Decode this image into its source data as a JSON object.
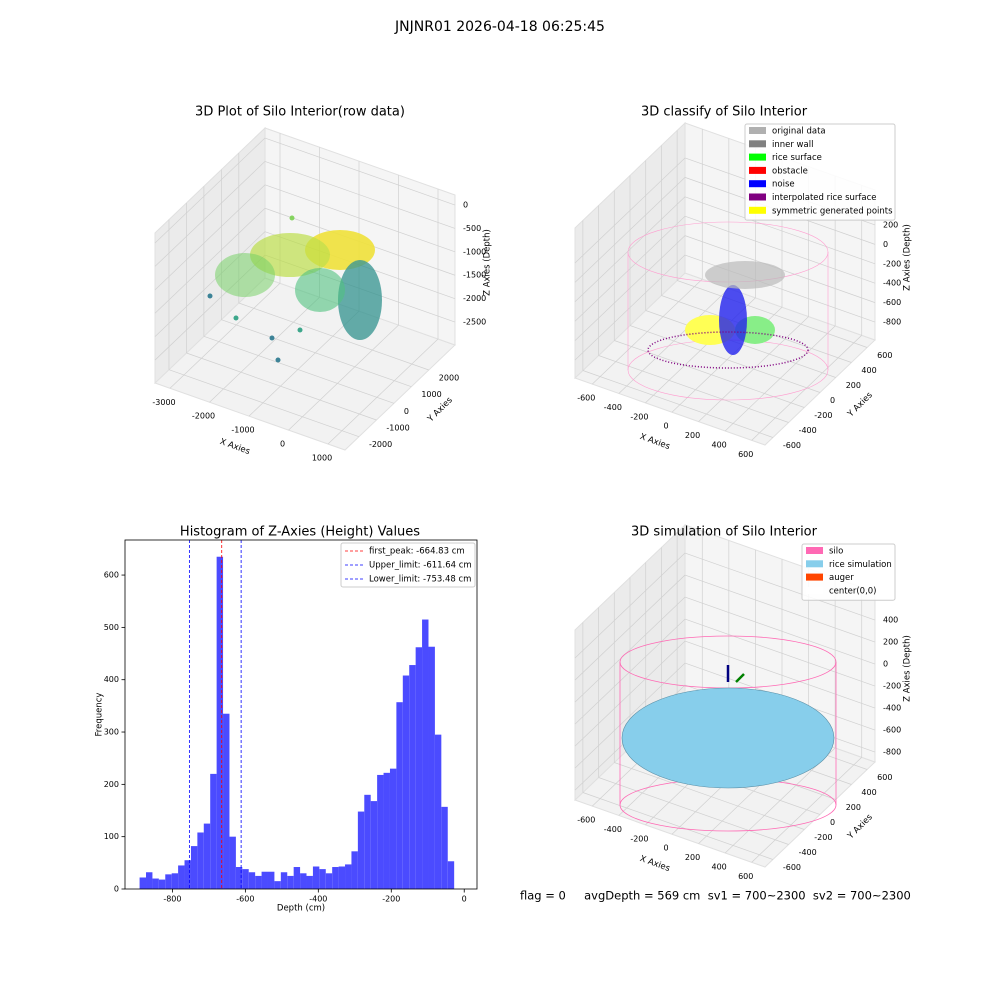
{
  "title": "JNJNR01 2026-04-18 06:25:45",
  "chart_data": [
    {
      "type": "scatter3d",
      "title": "3D Plot of Silo Interior(row data)",
      "xlabel": "X Axies",
      "ylabel": "Y Axies",
      "zlabel": "Z Axies (Depth)",
      "xlim": [
        -3380,
        1430
      ],
      "ylim": [
        -2800,
        3500
      ],
      "zlim": [
        -2990,
        214
      ],
      "xticks": [
        -3000,
        -2000,
        -1000,
        0,
        1000
      ],
      "yticks": [
        -2000,
        -1000,
        0,
        1000,
        2000
      ],
      "zticks": [
        0,
        -500,
        -1000,
        -1500,
        -2000,
        -2500
      ]
    },
    {
      "type": "scatter3d",
      "title": "3D classify of Silo Interior",
      "xlabel": "X Axies",
      "ylabel": "Y Axies",
      "zlabel": "Z Axies (Depth)",
      "xlim": [
        -730,
        700
      ],
      "ylim": [
        -700,
        700
      ],
      "zlim": [
        -985,
        560
      ],
      "xticks": [
        -600,
        -400,
        -200,
        0,
        200,
        400,
        600
      ],
      "yticks": [
        -600,
        -400,
        -200,
        0,
        200,
        400,
        600
      ],
      "zticks": [
        200,
        0,
        -200,
        -400,
        -600,
        -800
      ],
      "legend": [
        {
          "name": "original data",
          "color": "#b0b0b0"
        },
        {
          "name": "inner wall",
          "color": "#808080"
        },
        {
          "name": "rice surface",
          "color": "#00ff00"
        },
        {
          "name": "obstacle",
          "color": "#ff0000"
        },
        {
          "name": "noise",
          "color": "#0000ff"
        },
        {
          "name": "interpolated rice surface",
          "color": "#800080"
        },
        {
          "name": "symmetric generated points",
          "color": "#ffff00"
        }
      ]
    },
    {
      "type": "histogram",
      "title": "Histogram of Z-Axies (Height) Values",
      "xlabel": "Depth (cm)",
      "ylabel": "Frequency",
      "color": "#4b4bff",
      "bins": [
        -890,
        -872.4,
        -854.8,
        -837.2,
        -819.6,
        -802,
        -784.4,
        -766.8,
        -749.2,
        -731.6,
        -714,
        -696.4,
        -678.8,
        -661.2,
        -643.6,
        -626,
        -608.4,
        -590.8,
        -573.2,
        -555.6,
        -538,
        -520.4,
        -502.8,
        -485.2,
        -467.6,
        -450,
        -432.4,
        -414.8,
        -397.2,
        -379.6,
        -362,
        -344.4,
        -326.8,
        -309.2,
        -291.6,
        -274,
        -256.4,
        -238.8,
        -221.2,
        -203.6,
        -186,
        -168.4,
        -150.8,
        -133.2,
        -115.6,
        -98,
        -80.4,
        -62.8,
        -45.2,
        -27.6,
        -10
      ],
      "values": [
        22,
        32,
        20,
        18,
        28,
        30,
        45,
        55,
        82,
        108,
        125,
        220,
        635,
        335,
        100,
        42,
        38,
        32,
        25,
        33,
        33,
        15,
        32,
        25,
        42,
        30,
        25,
        43,
        38,
        30,
        42,
        43,
        47,
        72,
        148,
        180,
        168,
        218,
        222,
        230,
        357,
        408,
        428,
        462,
        515,
        463,
        295,
        157,
        53,
        0
      ],
      "xlim": [
        -930,
        35
      ],
      "ylim": [
        0,
        667
      ],
      "xticks": [
        -800,
        -600,
        -400,
        -200,
        0
      ],
      "yticks": [
        0,
        100,
        200,
        300,
        400,
        500,
        600
      ],
      "vlines": [
        {
          "name": "first_peak: -664.83 cm",
          "value": -664.83,
          "color": "#ff0000"
        },
        {
          "name": "Upper_limit: -611.64 cm",
          "value": -611.64,
          "color": "#0000ff"
        },
        {
          "name": "Lower_limit: -753.48 cm",
          "value": -753.48,
          "color": "#0000ff"
        }
      ]
    },
    {
      "type": "surface3d",
      "title": "3D simulation of Silo Interior",
      "xlabel": "X Axies",
      "ylabel": "Y Axies",
      "zlabel": "Z Axies (Depth)",
      "xlim": [
        -730,
        700
      ],
      "ylim": [
        -700,
        700
      ],
      "zlim": [
        -890,
        655
      ],
      "xticks": [
        -600,
        -400,
        -200,
        0,
        200,
        400,
        600
      ],
      "yticks": [
        -600,
        -400,
        -200,
        0,
        200,
        400,
        600
      ],
      "zticks": [
        400,
        200,
        0,
        -200,
        -400,
        -600,
        -800
      ],
      "legend": [
        {
          "name": "silo",
          "color": "#ff69b4"
        },
        {
          "name": "rice simulation",
          "color": "#87ceeb"
        },
        {
          "name": "auger",
          "color": "#ff4500"
        },
        {
          "name": "center(0,0)",
          "color": "#ffffff"
        }
      ],
      "annotation": "flag = 0     avgDepth = 569 cm  sv1 = 700~2300  sv2 = 700~2300"
    }
  ]
}
